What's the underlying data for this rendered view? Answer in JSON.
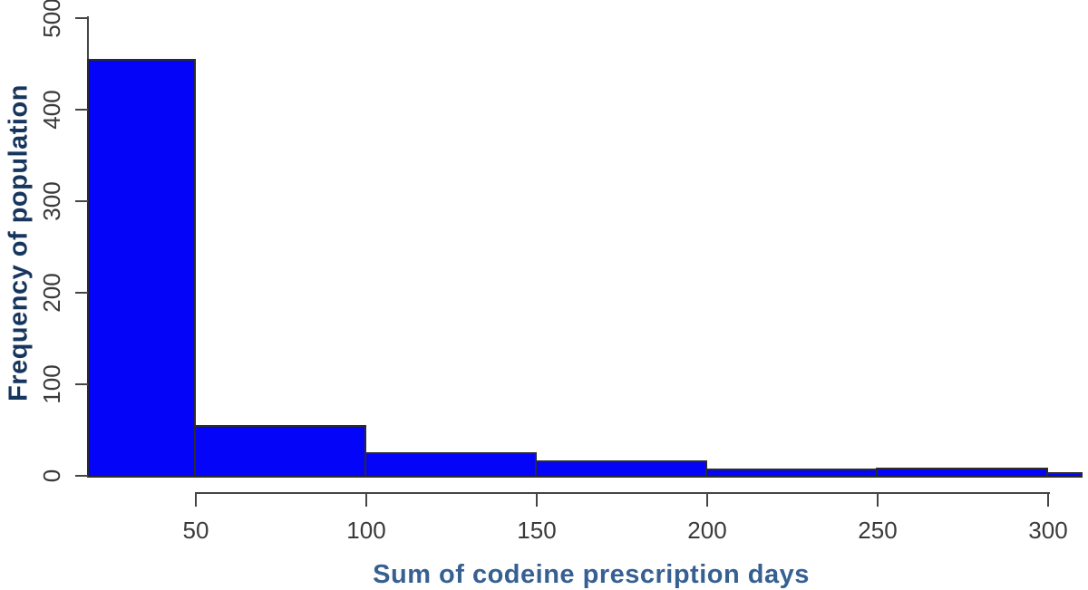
{
  "chart_data": {
    "type": "bar",
    "subtype": "histogram",
    "title": "",
    "xlabel": "Sum of codeine prescription days",
    "ylabel": "Frequency of population",
    "x_ticks": [
      "50",
      "100",
      "150",
      "200",
      "250",
      "300"
    ],
    "y_ticks": [
      "0",
      "100",
      "200",
      "300",
      "400",
      "500"
    ],
    "xlim": [
      18,
      310
    ],
    "ylim": [
      0,
      500
    ],
    "grid": false,
    "legend": false,
    "bins": [
      {
        "range": [
          18,
          50
        ],
        "frequency": 455
      },
      {
        "range": [
          50,
          100
        ],
        "frequency": 55
      },
      {
        "range": [
          100,
          150
        ],
        "frequency": 26
      },
      {
        "range": [
          150,
          200
        ],
        "frequency": 17
      },
      {
        "range": [
          200,
          250
        ],
        "frequency": 8
      },
      {
        "range": [
          250,
          300
        ],
        "frequency": 9
      },
      {
        "range": [
          300,
          310
        ],
        "frequency": 4
      }
    ],
    "colors": {
      "bar_fill": "#0404f8",
      "bar_border": "#2b2b2b",
      "axis": "#454545",
      "tick_label": "#3a3a3a",
      "xlabel_color": "#376092",
      "ylabel_color": "#17365d",
      "background": "#ffffff"
    }
  }
}
